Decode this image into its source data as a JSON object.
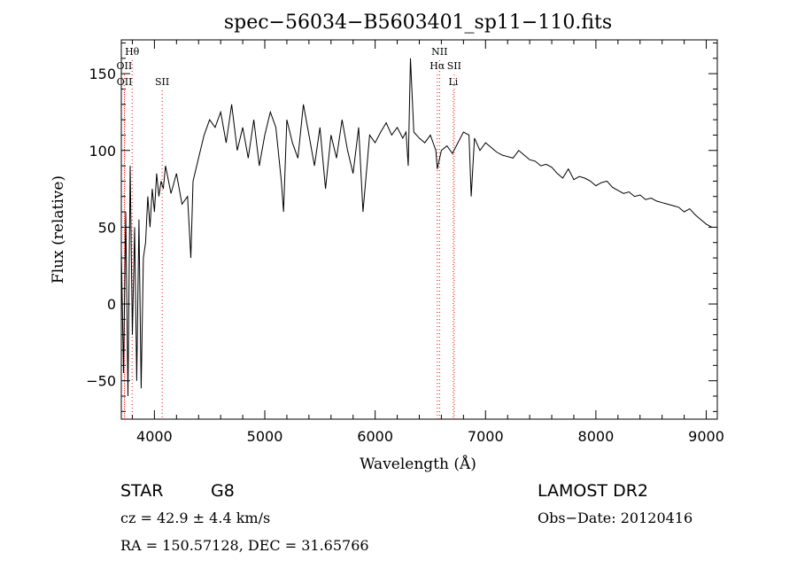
{
  "chart_data": {
    "type": "line",
    "title": "spec−56034−B5603401_sp11−110.fits",
    "xlabel": "Wavelength (Å)",
    "ylabel": "Flux (relative)",
    "xlim": [
      3700,
      9100
    ],
    "ylim": [
      -75,
      172
    ],
    "x_ticks": [
      4000,
      5000,
      6000,
      7000,
      8000,
      9000
    ],
    "y_ticks": [
      -50,
      0,
      50,
      100,
      150
    ],
    "y_tick_labels": [
      "−50",
      "0",
      "50",
      "100",
      "150"
    ],
    "series": [
      {
        "x": [
          3700,
          3720,
          3740,
          3760,
          3780,
          3800,
          3820,
          3840,
          3860,
          3880,
          3900,
          3920,
          3940,
          3960,
          3980,
          4000,
          4020,
          4040,
          4060,
          4080,
          4100,
          4150,
          4200,
          4250,
          4300,
          4330,
          4350,
          4400,
          4450,
          4500,
          4550,
          4600,
          4650,
          4700,
          4750,
          4800,
          4850,
          4900,
          4950,
          5000,
          5050,
          5100,
          5150,
          5170,
          5200,
          5250,
          5300,
          5350,
          5400,
          5450,
          5500,
          5550,
          5600,
          5650,
          5700,
          5750,
          5800,
          5850,
          5890,
          5950,
          6000,
          6050,
          6100,
          6150,
          6200,
          6250,
          6280,
          6300,
          6320,
          6350,
          6400,
          6450,
          6500,
          6550,
          6563,
          6600,
          6650,
          6700,
          6750,
          6800,
          6850,
          6870,
          6900,
          6950,
          7000,
          7050,
          7100,
          7150,
          7200,
          7250,
          7300,
          7350,
          7400,
          7450,
          7500,
          7550,
          7600,
          7650,
          7700,
          7750,
          7800,
          7850,
          7900,
          7950,
          8000,
          8050,
          8100,
          8150,
          8200,
          8250,
          8300,
          8350,
          8400,
          8450,
          8500,
          8550,
          8600,
          8650,
          8700,
          8750,
          8800,
          8850,
          8900,
          8950,
          9000,
          9050
        ],
        "y": [
          35,
          -45,
          60,
          -60,
          90,
          -20,
          50,
          -50,
          55,
          -55,
          30,
          40,
          70,
          50,
          75,
          60,
          85,
          70,
          80,
          75,
          90,
          72,
          85,
          65,
          70,
          30,
          80,
          95,
          110,
          120,
          115,
          125,
          105,
          130,
          100,
          115,
          95,
          120,
          90,
          110,
          125,
          115,
          80,
          60,
          120,
          105,
          95,
          130,
          110,
          90,
          115,
          75,
          110,
          95,
          120,
          100,
          85,
          115,
          60,
          110,
          105,
          112,
          118,
          110,
          115,
          108,
          112,
          90,
          160,
          112,
          108,
          105,
          110,
          100,
          88,
          100,
          103,
          98,
          105,
          112,
          110,
          70,
          108,
          100,
          105,
          102,
          99,
          97,
          96,
          95,
          100,
          97,
          94,
          93,
          90,
          91,
          89,
          85,
          82,
          88,
          81,
          83,
          82,
          80,
          77,
          79,
          80,
          76,
          74,
          72,
          73,
          70,
          71,
          68,
          69,
          67,
          66,
          65,
          64,
          63,
          60,
          62,
          58,
          55,
          52,
          50
        ]
      }
    ],
    "spectral_lines": [
      {
        "label": "Hθ",
        "x": 3798,
        "row": 0
      },
      {
        "label": "OII",
        "x": 3727,
        "row": 1
      },
      {
        "label": "OII",
        "x": 3729,
        "row": 2
      },
      {
        "label": "SII",
        "x": 4070,
        "row": 2
      },
      {
        "label": "NII",
        "x": 6583,
        "row": 0
      },
      {
        "label": "Hα",
        "x": 6563,
        "row": 1
      },
      {
        "label": "SII",
        "x": 6716,
        "row": 1
      },
      {
        "label": "Li",
        "x": 6708,
        "row": 2
      }
    ],
    "line_color": "#000000",
    "marker_color": "#ff0000"
  },
  "footer": {
    "object_class": "STAR",
    "subclass": "G8",
    "survey": "LAMOST DR2",
    "cz": "cz = 42.9 ± 4.4 km/s",
    "obs_date": "Obs−Date: 20120416",
    "coords": "RA = 150.57128, DEC =  31.65766"
  }
}
